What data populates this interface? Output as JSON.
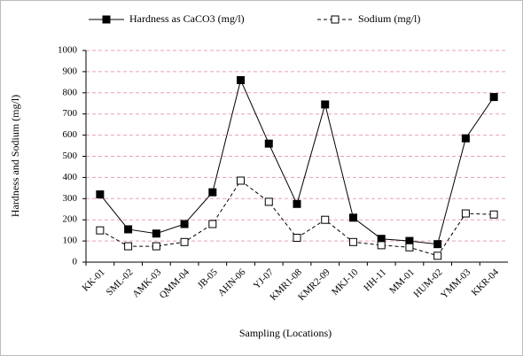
{
  "chart_data": {
    "type": "line",
    "xlabel": "Sampling  (Locations)",
    "ylabel": "Hardness and Sodium  (mg/l)",
    "categories": [
      "KK-01",
      "SML-02",
      "AMK-03",
      "QMM-04",
      "JB-05",
      "AHN-06",
      "YJ-07",
      "KMR1-08",
      "KMR2-09",
      "MKJ-10",
      "HH-11",
      "MM-01",
      "HUM-02",
      "YMM-03",
      "KKR-04"
    ],
    "series": [
      {
        "name": "Hardness as CaCO3  (mg/l)",
        "color": "#000000",
        "dashed": false,
        "marker_fill": "#000000",
        "values": [
          320,
          155,
          135,
          180,
          330,
          860,
          560,
          275,
          745,
          210,
          110,
          100,
          85,
          585,
          780
        ]
      },
      {
        "name": "Sodium  (mg/l)",
        "color": "#000000",
        "dashed": true,
        "marker_fill": "#ffffff",
        "values": [
          150,
          75,
          75,
          95,
          180,
          385,
          285,
          115,
          200,
          95,
          80,
          70,
          30,
          230,
          225
        ]
      }
    ],
    "ylim": [
      0,
      1000
    ],
    "yticks": [
      0,
      100,
      200,
      300,
      400,
      500,
      600,
      700,
      800,
      900,
      1000
    ],
    "grid": true,
    "grid_color": "#e8a0b0",
    "legend": "top"
  }
}
